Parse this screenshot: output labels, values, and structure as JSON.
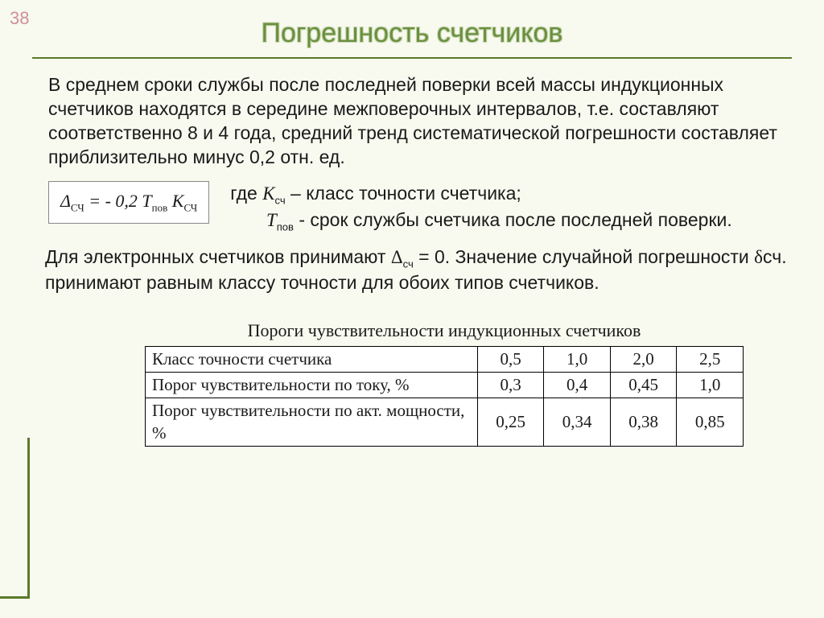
{
  "slide_number": "38",
  "title": "Погрешность счетчиков",
  "para1": "В среднем сроки службы после последней поверки всей массы индукционных счетчиков находятся в середине межповерочных интервалов, т.е. составляют соответственно 8 и 4 года, средний тренд систематической погрешности составляет приблизительно минус 0,2 отн. ед.",
  "formula": {
    "delta": "Δ",
    "delta_sub": "СЧ",
    "eq": " = - 0,2 ",
    "T": "T",
    "T_sub": "пов",
    "K": " K",
    "K_sub": "СЧ"
  },
  "where": {
    "prefix": "где ",
    "k_sym": "К",
    "k_sub": "сч",
    "k_desc": "  – класс точности счетчика;",
    "indent": "       ",
    "t_sym": "Т",
    "t_sub": "пов",
    "t_desc": "  - срок службы счетчика после последней поверки."
  },
  "para2_a": "Для электронных счетчиков принимают  ",
  "para2_delta_sub": "сч",
  "para2_b": " = 0. Значение случайной погрешности ",
  "para2_delta2": "δ",
  "para2_c": "сч. принимают равным классу точности для обоих типов счетчиков.",
  "table": {
    "title": "Пороги чувствительности индукционных счетчиков",
    "rows": [
      {
        "label": "Класс точности счетчика",
        "v": [
          "0,5",
          "1,0",
          "2,0",
          "2,5"
        ]
      },
      {
        "label": "Порог чувствительности по току, %",
        "v": [
          "0,3",
          "0,4",
          "0,45",
          "1,0"
        ]
      },
      {
        "label": "Порог чувствительности по акт. мощности, %",
        "v": [
          "0,25",
          "0,34",
          "0,38",
          "0,85"
        ]
      }
    ]
  },
  "colors": {
    "background": "#f8f9ef",
    "accent": "#5a7a2a",
    "title_text": "#6a8f3f",
    "slidenum": "#d08f9b"
  }
}
